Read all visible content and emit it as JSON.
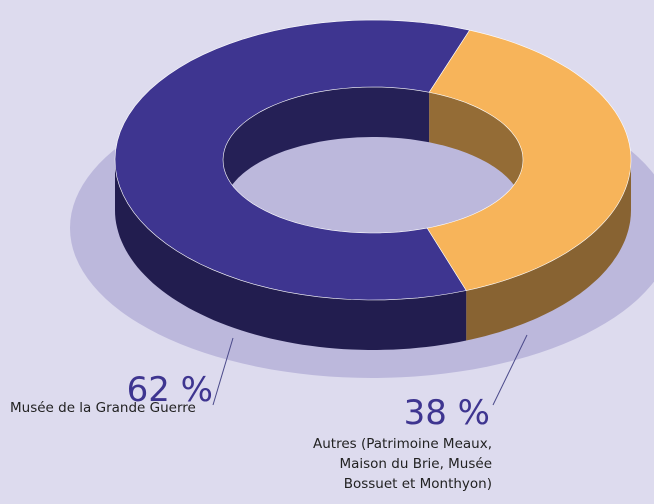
{
  "chart_data": {
    "type": "donut3d",
    "categories": [
      "Musée de la Grande Guerre",
      "Autres (Patrimoine Meaux, Maison du Brie, Musée Bossuet et Monthyon)"
    ],
    "values": [
      62,
      38
    ],
    "value_labels": [
      "62 %",
      "38 %"
    ],
    "colors": [
      "#3e3590",
      "#f7b45a"
    ]
  }
}
